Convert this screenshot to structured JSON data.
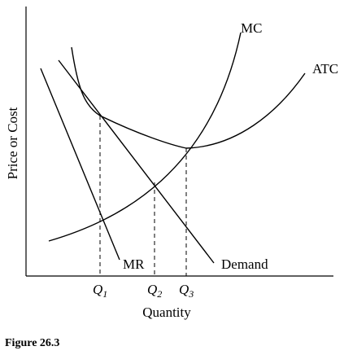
{
  "caption": "Figure 26.3",
  "chart_data": {
    "type": "line",
    "title": "",
    "xlabel": "Quantity",
    "ylabel": "Price or Cost",
    "grid": false,
    "xlim": [
      0,
      10
    ],
    "ylim": [
      0,
      10
    ],
    "axis_numbers_shown": false,
    "series": [
      {
        "name": "MC",
        "points": [
          [
            1.2,
            1.3
          ],
          [
            2.1,
            2.2
          ],
          [
            3.4,
            3.3
          ],
          [
            4.6,
            4.6
          ],
          [
            5.8,
            6.5
          ],
          [
            7.0,
            9.6
          ]
        ]
      },
      {
        "name": "ATC",
        "points": [
          [
            0.8,
            0.9
          ],
          [
            1.6,
            1.6
          ],
          [
            2.7,
            2.4
          ],
          [
            4.6,
            4.6
          ],
          [
            6.5,
            5.6
          ],
          [
            8.2,
            7.4
          ],
          [
            9.5,
            8.9
          ]
        ]
      },
      {
        "name": "Demand",
        "points": [
          [
            1.0,
            7.8
          ],
          [
            6.6,
            0.2
          ]
        ]
      },
      {
        "name": "MR",
        "points": [
          [
            0.6,
            7.4
          ],
          [
            2.8,
            0.3
          ]
        ]
      }
    ],
    "quantity_markers": [
      {
        "label": "Q",
        "sub": "1",
        "x": 2.5,
        "y": 5.7
      },
      {
        "label": "Q",
        "sub": "2",
        "x": 4.3,
        "y": 3.1
      },
      {
        "label": "Q",
        "sub": "3",
        "x": 5.4,
        "y": 4.6
      }
    ]
  }
}
